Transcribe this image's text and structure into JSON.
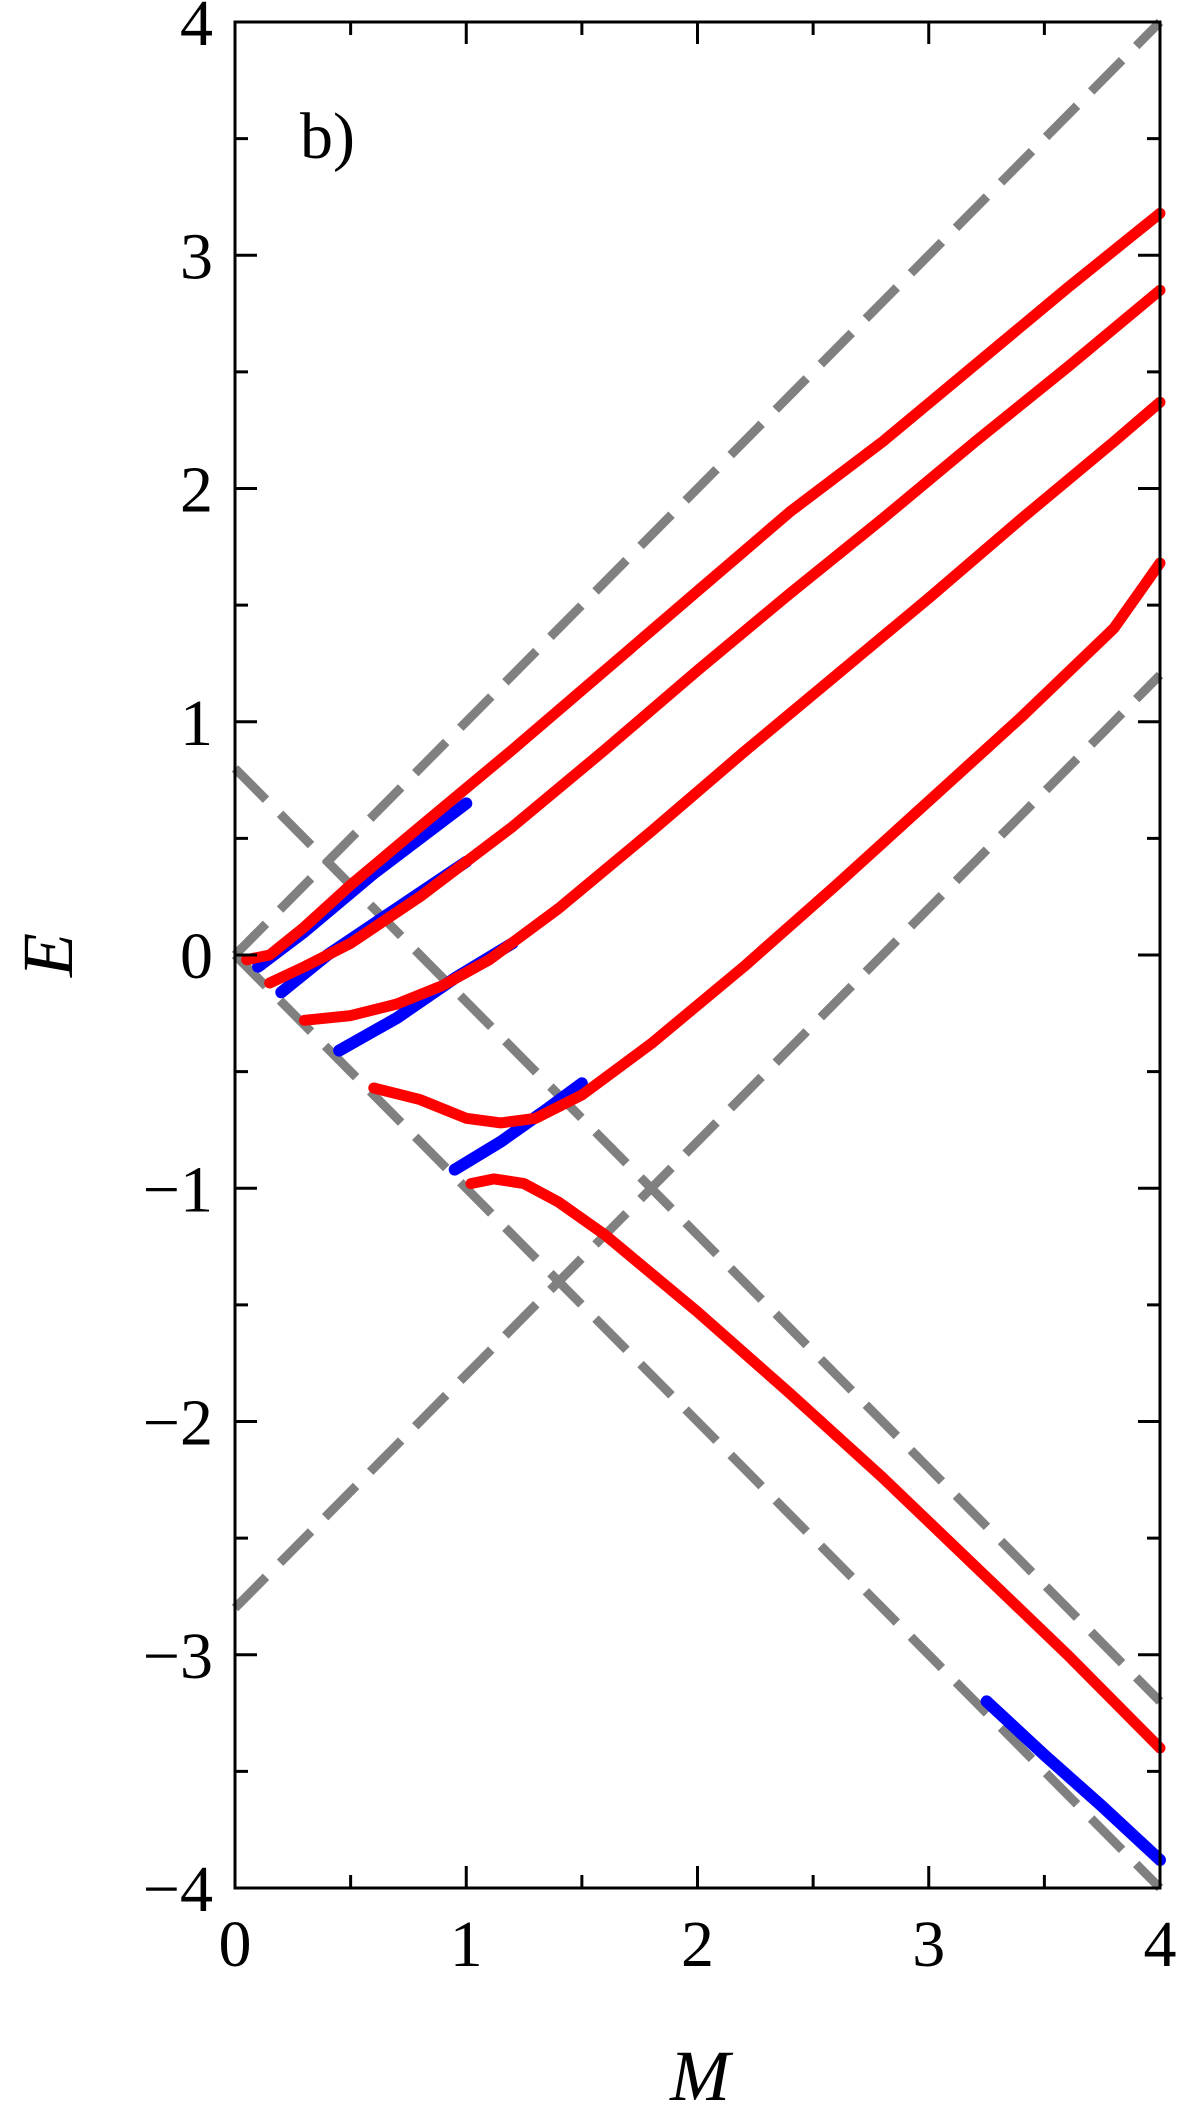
{
  "chart_data": {
    "type": "line",
    "panel_label": "b)",
    "xlabel": "M",
    "ylabel": "E",
    "xlim": [
      0,
      4
    ],
    "ylim": [
      -4,
      4
    ],
    "x_ticks": [
      0,
      1,
      2,
      3,
      4
    ],
    "x_tick_labels": [
      "0",
      "1",
      "2",
      "3",
      "4"
    ],
    "y_ticks": [
      -4,
      -3,
      -2,
      -1,
      0,
      1,
      2,
      3,
      4
    ],
    "y_tick_labels": [
      "−4",
      "−3",
      "−2",
      "−1",
      "0",
      "1",
      "2",
      "3",
      "4"
    ],
    "grid": false,
    "colors": {
      "red": "#ff0000",
      "blue": "#0000ff",
      "gray": "#808080"
    },
    "dashed_lines": [
      {
        "x": [
          0,
          4
        ],
        "y": [
          0,
          4
        ]
      },
      {
        "x": [
          0,
          4
        ],
        "y": [
          0,
          -4
        ]
      },
      {
        "x": [
          0,
          4
        ],
        "y": [
          0.8,
          -3.2
        ]
      },
      {
        "x": [
          0,
          4
        ],
        "y": [
          -2.8,
          1.2
        ]
      }
    ],
    "blue_curves": [
      {
        "x": [
          0.1,
          0.3,
          0.6,
          1.0
        ],
        "y": [
          -0.05,
          0.1,
          0.35,
          0.65
        ]
      },
      {
        "x": [
          0.2,
          0.4,
          0.7,
          1.0
        ],
        "y": [
          -0.16,
          0.0,
          0.2,
          0.4
        ]
      },
      {
        "x": [
          0.45,
          0.7,
          0.95,
          1.2
        ],
        "y": [
          -0.41,
          -0.27,
          -0.1,
          0.05
        ]
      },
      {
        "x": [
          0.95,
          1.15,
          1.35,
          1.5
        ],
        "y": [
          -0.92,
          -0.8,
          -0.66,
          -0.55
        ]
      },
      {
        "x": [
          3.25,
          3.5,
          3.75,
          4.0
        ],
        "y": [
          -3.2,
          -3.43,
          -3.65,
          -3.88
        ]
      }
    ],
    "red_curves": [
      {
        "x": [
          0.05,
          0.15,
          0.3,
          0.5,
          0.8,
          1.2,
          1.6,
          2.0,
          2.4,
          2.8,
          3.2,
          3.6,
          4.0
        ],
        "y": [
          -0.02,
          0.0,
          0.12,
          0.3,
          0.55,
          0.88,
          1.22,
          1.56,
          1.9,
          2.2,
          2.53,
          2.86,
          3.18
        ]
      },
      {
        "x": [
          0.15,
          0.3,
          0.5,
          0.8,
          1.2,
          1.6,
          2.0,
          2.4,
          2.8,
          3.2,
          3.6,
          4.0
        ],
        "y": [
          -0.12,
          -0.05,
          0.05,
          0.25,
          0.55,
          0.88,
          1.22,
          1.55,
          1.87,
          2.2,
          2.52,
          2.85
        ]
      },
      {
        "x": [
          0.3,
          0.5,
          0.7,
          0.9,
          1.1,
          1.4,
          1.8,
          2.2,
          2.6,
          3.0,
          3.4,
          3.8,
          4.0
        ],
        "y": [
          -0.28,
          -0.26,
          -0.21,
          -0.13,
          -0.02,
          0.2,
          0.53,
          0.87,
          1.2,
          1.53,
          1.87,
          2.2,
          2.37
        ]
      },
      {
        "x": [
          0.6,
          0.8,
          1.0,
          1.15,
          1.3,
          1.5,
          1.8,
          2.2,
          2.6,
          3.0,
          3.4,
          3.8,
          4.0
        ],
        "y": [
          -0.57,
          -0.62,
          -0.7,
          -0.72,
          -0.7,
          -0.6,
          -0.38,
          -0.05,
          0.3,
          0.66,
          1.02,
          1.4,
          1.68
        ]
      },
      {
        "x": [
          1.02,
          1.12,
          1.25,
          1.4,
          1.6,
          2.0,
          2.4,
          2.8,
          3.2,
          3.6,
          4.0
        ],
        "y": [
          -0.98,
          -0.96,
          -0.98,
          -1.06,
          -1.2,
          -1.53,
          -1.88,
          -2.24,
          -2.62,
          -3.0,
          -3.4
        ]
      }
    ]
  }
}
